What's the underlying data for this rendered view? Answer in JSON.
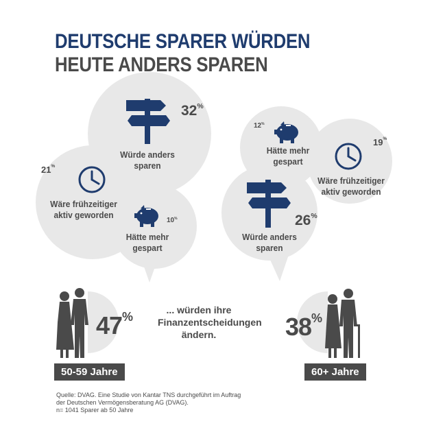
{
  "title": {
    "line1": "DEUTSCHE SPARER WÜRDEN",
    "line2": "HEUTE ANDERS SPAREN"
  },
  "left_group": {
    "items": [
      {
        "label_line1": "Würde anders",
        "label_line2": "sparen",
        "value": "32",
        "icon": "signpost-icon"
      },
      {
        "label_line1": "Wäre frühzeitiger",
        "label_line2": "aktiv geworden",
        "value": "21",
        "icon": "clock-icon"
      },
      {
        "label_line1": "Hätte mehr",
        "label_line2": "gespart",
        "value": "10",
        "icon": "piggy-bank-icon"
      }
    ],
    "share": "47",
    "age": "50-59 Jahre"
  },
  "right_group": {
    "items": [
      {
        "label_line1": "Hätte mehr",
        "label_line2": "gespart",
        "value": "12",
        "icon": "piggy-bank-icon"
      },
      {
        "label_line1": "Wäre frühzeitiger",
        "label_line2": "aktiv geworden",
        "value": "19",
        "icon": "clock-icon"
      },
      {
        "label_line1": "Würde anders",
        "label_line2": "sparen",
        "value": "26",
        "icon": "signpost-icon"
      }
    ],
    "share": "38",
    "age": "60+ Jahre"
  },
  "percent_sign": "%",
  "center": {
    "line1": "... würden ihre",
    "line2": "Finanzentscheidungen",
    "line3": "ändern."
  },
  "source": {
    "line1": "Quelle: DVAG. Eine Studie von Kantar TNS durchgeführt im Auftrag",
    "line2": "der Deutschen Vermögensberatung AG (DVAG).",
    "line3": "n= 1041 Sparer ab 50 Jahre"
  },
  "colors": {
    "navy": "#1f3c6e",
    "gray_text": "#4a4a4a",
    "bubble": "#e8e8e8"
  }
}
